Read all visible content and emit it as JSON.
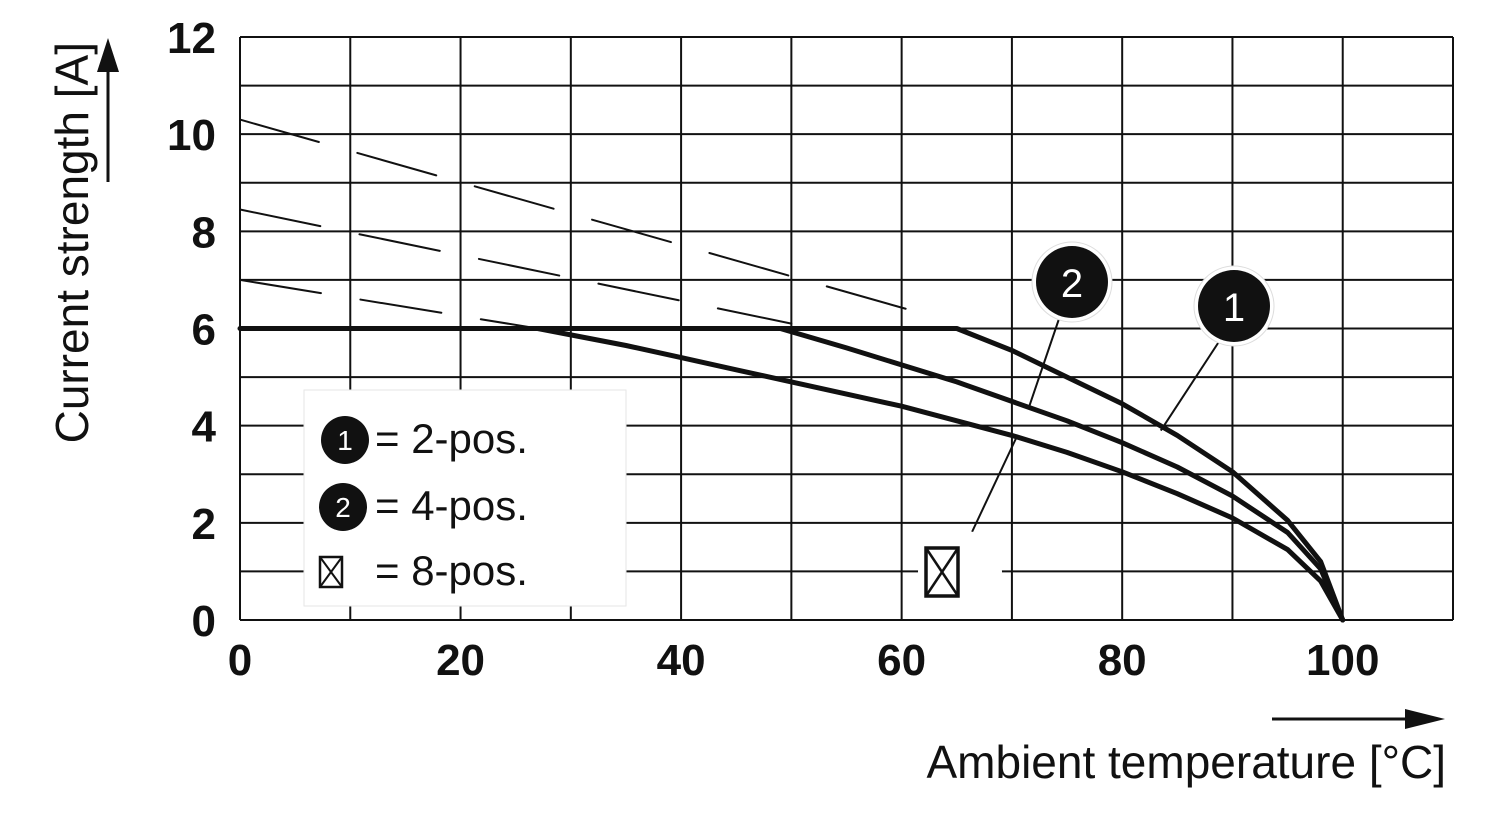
{
  "chart_data": {
    "type": "line",
    "xlabel": "Ambient temperature [°C]",
    "ylabel": "Current strength [A]",
    "xlim": [
      0,
      110
    ],
    "ylim": [
      0,
      12
    ],
    "x_ticks": [
      0,
      20,
      40,
      60,
      80,
      100
    ],
    "y_ticks": [
      0,
      2,
      4,
      6,
      8,
      10,
      12
    ],
    "grid": true,
    "legend_position": "bottom-left",
    "series": [
      {
        "name": "2-pos.",
        "marker": "1",
        "style": "solid",
        "x": [
          0,
          65,
          70,
          75,
          80,
          85,
          90,
          95,
          98,
          100
        ],
        "y": [
          6,
          6,
          5.55,
          5.0,
          4.45,
          3.8,
          3.05,
          2.05,
          1.2,
          0
        ]
      },
      {
        "name": "4-pos.",
        "marker": "2",
        "style": "solid",
        "x": [
          49,
          55,
          60,
          65,
          70,
          75,
          80,
          85,
          90,
          95,
          98,
          100
        ],
        "y": [
          6,
          5.6,
          5.25,
          4.9,
          4.5,
          4.1,
          3.65,
          3.15,
          2.55,
          1.8,
          1.05,
          0
        ]
      },
      {
        "name": "8-pos.",
        "marker": "crossed-box",
        "style": "solid",
        "x": [
          27,
          35,
          40,
          45,
          50,
          55,
          60,
          65,
          70,
          75,
          80,
          85,
          90,
          95,
          98,
          100
        ],
        "y": [
          6,
          5.65,
          5.4,
          5.15,
          4.9,
          4.65,
          4.4,
          4.1,
          3.8,
          3.45,
          3.05,
          2.6,
          2.1,
          1.45,
          0.8,
          0
        ]
      },
      {
        "style": "dashed",
        "x": [
          0,
          62
        ],
        "y": [
          10.3,
          6.3
        ]
      },
      {
        "style": "dashed",
        "x": [
          0,
          50
        ],
        "y": [
          8.45,
          6.1
        ]
      },
      {
        "style": "dashed",
        "x": [
          0,
          27
        ],
        "y": [
          7.0,
          6.0
        ]
      }
    ],
    "callouts": [
      {
        "marker": "1",
        "x": 83.5,
        "y": 3.9
      },
      {
        "marker": "2",
        "x": 71.5,
        "y": 4.35
      },
      {
        "marker": "crossed-box",
        "x": 70.5,
        "y": 3.8
      }
    ]
  },
  "legend": {
    "items": [
      {
        "marker": "1",
        "text": "= 2-pos."
      },
      {
        "marker": "2",
        "text": "= 4-pos."
      },
      {
        "marker": "crossed-box",
        "text": "= 8-pos."
      }
    ]
  }
}
